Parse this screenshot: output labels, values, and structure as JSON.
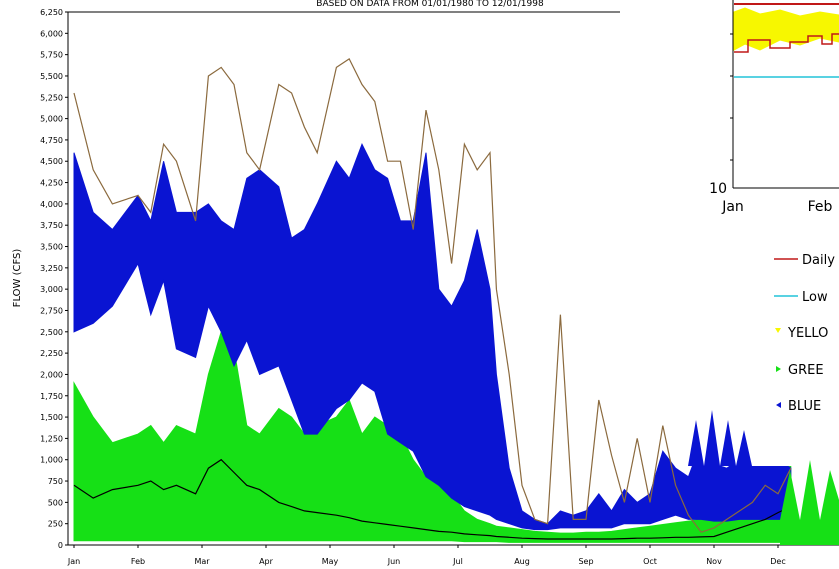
{
  "chart_data": [
    {
      "type": "line",
      "subtitle": "BASED ON DATA FROM 01/01/1980 TO 12/01/1998",
      "ylabel": "FLOW (CFS)",
      "xlabel": "",
      "ylim": [
        0,
        6250
      ],
      "y_ticks": [
        "0",
        "250",
        "500",
        "750",
        "1,000",
        "1,250",
        "1,500",
        "1,750",
        "2,000",
        "2,250",
        "2,500",
        "2,750",
        "3,000",
        "3,250",
        "3,500",
        "3,750",
        "4,000",
        "4,250",
        "4,500",
        "4,750",
        "5,000",
        "5,250",
        "5,500",
        "5,750",
        "6,000",
        "6,250"
      ],
      "x_ticks": [
        "Jan",
        "Feb",
        "Mar",
        "Apr",
        "May",
        "Jun",
        "Jul",
        "Aug",
        "Sep",
        "Oct",
        "Nov",
        "Dec"
      ],
      "grid": false,
      "series": [
        {
          "color": "#8b6a3e",
          "style": "line",
          "x": [
            0,
            0.3,
            0.6,
            1,
            1.2,
            1.4,
            1.6,
            1.9,
            2.1,
            2.3,
            2.5,
            2.7,
            2.9,
            3.2,
            3.4,
            3.6,
            3.8,
            4.1,
            4.3,
            4.5,
            4.7,
            4.9,
            5.1,
            5.3,
            5.5,
            5.7,
            5.9,
            6.1,
            6.3,
            6.5,
            6.6,
            6.8,
            7,
            7.2,
            7.4,
            7.6,
            7.8,
            8,
            8.2,
            8.4,
            8.6,
            8.8,
            9,
            9.2,
            9.4,
            9.6,
            9.8,
            10,
            10.2,
            10.4,
            10.6,
            10.8,
            11,
            11.2
          ],
          "y": [
            5300,
            4400,
            4000,
            4100,
            3900,
            4700,
            4500,
            3800,
            5500,
            5600,
            5400,
            4600,
            4400,
            5400,
            5300,
            4900,
            4600,
            5600,
            5700,
            5400,
            5200,
            4500,
            4500,
            3700,
            5100,
            4400,
            3300,
            4700,
            4400,
            4600,
            3000,
            2000,
            700,
            300,
            250,
            2700,
            300,
            300,
            1700,
            1050,
            500,
            1250,
            500,
            1400,
            700,
            350,
            150,
            200,
            300,
            400,
            500,
            700,
            600,
            900
          ]
        },
        {
          "color": "#0a14d2",
          "style": "band",
          "x": [
            0,
            0.3,
            0.6,
            1,
            1.2,
            1.4,
            1.6,
            1.9,
            2.1,
            2.3,
            2.5,
            2.7,
            2.9,
            3.2,
            3.4,
            3.6,
            3.8,
            4.1,
            4.3,
            4.5,
            4.7,
            4.9,
            5.1,
            5.3,
            5.5,
            5.7,
            5.9,
            6.1,
            6.3,
            6.5,
            6.6,
            6.8,
            7,
            7.2,
            7.4,
            7.6,
            7.8,
            8,
            8.2,
            8.4,
            8.6,
            8.8,
            9,
            9.2,
            9.4,
            9.6,
            9.8,
            10,
            10.2,
            10.4,
            10.6,
            10.8,
            11,
            11.2
          ],
          "y": [
            4600,
            3900,
            3700,
            4100,
            3800,
            4500,
            3900,
            3900,
            4000,
            3800,
            3700,
            4300,
            4400,
            4200,
            3600,
            3700,
            4000,
            4500,
            4300,
            4700,
            4400,
            4300,
            3800,
            3800,
            4600,
            3000,
            2800,
            3100,
            3700,
            3000,
            2000,
            900,
            400,
            300,
            250,
            400,
            350,
            400,
            600,
            400,
            650,
            500,
            600,
            1100,
            900,
            800,
            1200,
            950,
            900,
            1000,
            1100,
            1200,
            1000,
            900
          ],
          "low": [
            2500,
            2600,
            2800,
            3300,
            2700,
            3100,
            2300,
            2200,
            2800,
            2500,
            2100,
            2400,
            2000,
            2100,
            1700,
            1300,
            1300,
            1600,
            1700,
            1900,
            1800,
            1300,
            1200,
            1100,
            800,
            700,
            550,
            450,
            400,
            350,
            300,
            250,
            200,
            180,
            180,
            200,
            200,
            200,
            200,
            200,
            250,
            250,
            250,
            300,
            350,
            300,
            300,
            280,
            280,
            300,
            300,
            300,
            300,
            300
          ]
        },
        {
          "color": "#16e016",
          "style": "band",
          "x": [
            0,
            0.3,
            0.6,
            1,
            1.2,
            1.4,
            1.6,
            1.9,
            2.1,
            2.3,
            2.5,
            2.7,
            2.9,
            3.2,
            3.4,
            3.6,
            3.8,
            4.1,
            4.3,
            4.5,
            4.7,
            4.9,
            5.1,
            5.3,
            5.5,
            5.7,
            5.9,
            6.1,
            6.3,
            6.5,
            6.6,
            6.8,
            7,
            7.2,
            7.4,
            7.6,
            7.8,
            8,
            8.2,
            8.4,
            8.6,
            8.8,
            9,
            9.2,
            9.4,
            9.6,
            9.8,
            10,
            10.2,
            10.4,
            10.6,
            10.8,
            11,
            11.2
          ],
          "y": [
            1900,
            1500,
            1200,
            1300,
            1400,
            1200,
            1400,
            1300,
            2000,
            2500,
            2300,
            1400,
            1300,
            1600,
            1500,
            1300,
            1400,
            1500,
            1700,
            1300,
            1500,
            1400,
            1300,
            1000,
            800,
            700,
            600,
            400,
            300,
            250,
            220,
            200,
            180,
            160,
            150,
            140,
            140,
            150,
            150,
            160,
            180,
            200,
            220,
            240,
            260,
            280,
            300,
            350,
            450,
            600,
            800,
            1000,
            1200,
            1100
          ],
          "low": [
            50,
            50,
            50,
            50,
            50,
            50,
            50,
            50,
            50,
            50,
            50,
            50,
            50,
            50,
            50,
            50,
            50,
            50,
            50,
            50,
            50,
            50,
            50,
            50,
            50,
            50,
            50,
            40,
            40,
            40,
            40,
            30,
            30,
            30,
            30,
            30,
            30,
            30,
            30,
            30,
            30,
            30,
            30,
            30,
            30,
            30,
            30,
            30,
            30,
            30,
            30,
            30,
            30,
            30
          ]
        },
        {
          "color": "#000000",
          "style": "line",
          "x": [
            0,
            0.3,
            0.6,
            1,
            1.2,
            1.4,
            1.6,
            1.9,
            2.1,
            2.3,
            2.5,
            2.7,
            2.9,
            3.2,
            3.4,
            3.6,
            3.8,
            4.1,
            4.3,
            4.5,
            4.7,
            4.9,
            5.1,
            5.3,
            5.5,
            5.7,
            5.9,
            6.1,
            6.3,
            6.5,
            6.6,
            6.8,
            7,
            7.2,
            7.4,
            7.6,
            7.8,
            8,
            8.2,
            8.4,
            8.6,
            8.8,
            9,
            9.2,
            9.4,
            9.6,
            9.8,
            10,
            10.2,
            10.4,
            10.6,
            10.8,
            11,
            11.2
          ],
          "y": [
            700,
            550,
            650,
            700,
            750,
            650,
            700,
            600,
            900,
            1000,
            850,
            700,
            650,
            500,
            450,
            400,
            380,
            350,
            320,
            280,
            260,
            240,
            220,
            200,
            180,
            160,
            150,
            130,
            120,
            110,
            100,
            90,
            80,
            75,
            70,
            70,
            70,
            70,
            70,
            70,
            75,
            80,
            80,
            85,
            90,
            90,
            95,
            100,
            150,
            200,
            250,
            300,
            380,
            450
          ]
        }
      ]
    },
    {
      "type": "line",
      "x_ticks": [
        "Jan",
        "Feb"
      ],
      "y_ticks": [
        "10"
      ],
      "legend": {
        "placement": "below-plot",
        "entries": [
          "Daily",
          "Low",
          "YELLO",
          "GREE",
          "BLUE"
        ]
      },
      "series": [
        {
          "name": "Daily",
          "color": "#c01818"
        },
        {
          "name": "Low",
          "color": "#22c4d8"
        },
        {
          "name": "YELLO",
          "color": "#f7f700"
        },
        {
          "name": "GREE",
          "color": "#16e016"
        },
        {
          "name": "BLUE",
          "color": "#0a14d2"
        }
      ]
    }
  ]
}
